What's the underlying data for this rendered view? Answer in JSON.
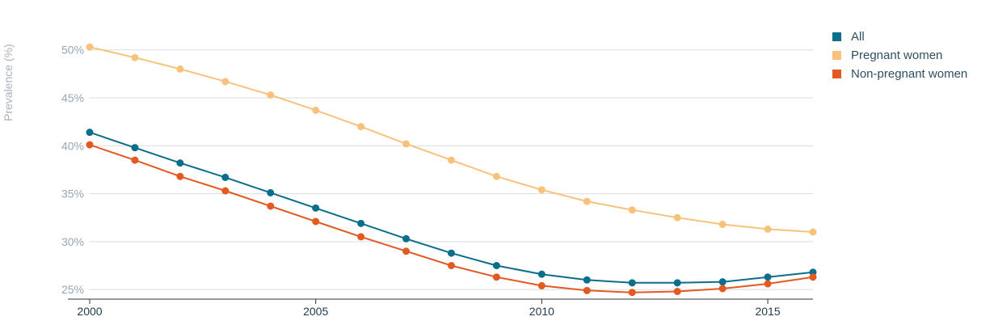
{
  "chart_data": {
    "type": "line",
    "ylabel": "Prevalence (%)",
    "xlim": [
      2000,
      2016
    ],
    "ylim": [
      24,
      52
    ],
    "y_ticks": [
      25,
      30,
      35,
      40,
      45,
      50
    ],
    "y_tick_labels": [
      "25%",
      "30%",
      "35%",
      "40%",
      "45%",
      "50%"
    ],
    "x_ticks": [
      2000,
      2005,
      2010,
      2015
    ],
    "x_tick_labels": [
      "2000",
      "2005",
      "2010",
      "2015"
    ],
    "grid": true,
    "legend_position": "top-right",
    "x": [
      2000,
      2001,
      2002,
      2003,
      2004,
      2005,
      2006,
      2007,
      2008,
      2009,
      2010,
      2011,
      2012,
      2013,
      2014,
      2015,
      2016
    ],
    "series": [
      {
        "name": "All",
        "color": "#0b6e8a",
        "values": [
          41.4,
          39.8,
          38.2,
          36.7,
          35.1,
          33.5,
          31.9,
          30.3,
          28.8,
          27.5,
          26.6,
          26.0,
          25.7,
          25.7,
          25.8,
          26.3,
          26.8
        ]
      },
      {
        "name": "Pregnant women",
        "color": "#f9c27c",
        "values": [
          50.3,
          49.2,
          48.0,
          46.7,
          45.3,
          43.7,
          42.0,
          40.2,
          38.5,
          36.8,
          35.4,
          34.2,
          33.3,
          32.5,
          31.8,
          31.3,
          31.0
        ]
      },
      {
        "name": "Non-pregnant women",
        "color": "#e25a22",
        "values": [
          40.1,
          38.5,
          36.8,
          35.3,
          33.7,
          32.1,
          30.5,
          29.0,
          27.5,
          26.3,
          25.4,
          24.9,
          24.7,
          24.8,
          25.1,
          25.6,
          26.3
        ]
      }
    ]
  }
}
